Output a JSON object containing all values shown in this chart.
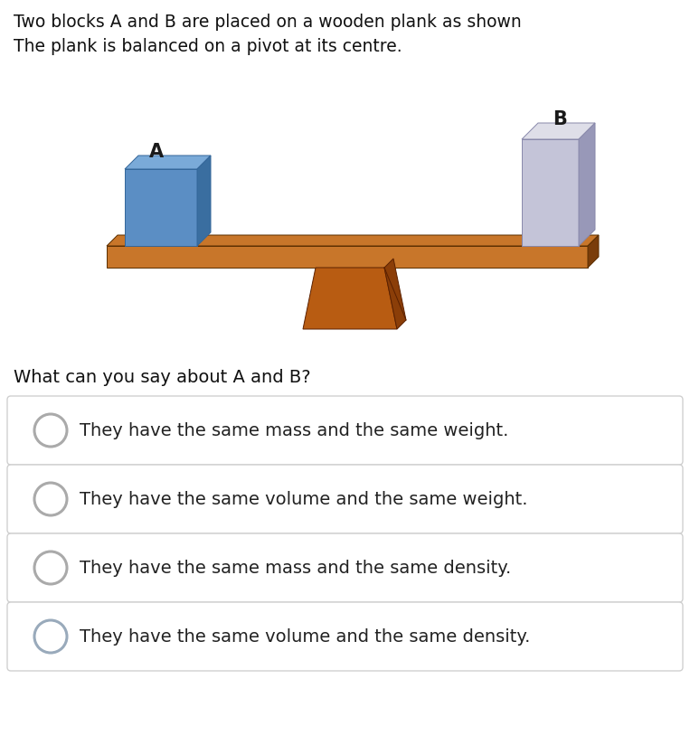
{
  "title_line1": "Two blocks A and B are placed on a wooden plank as shown",
  "title_line2": "The plank is balanced on a pivot at its centre.",
  "question": "What can you say about A and B?",
  "options": [
    "They have the same mass and the same weight.",
    "They have the same volume and the same weight.",
    "They have the same mass and the same density.",
    "They have the same volume and the same density."
  ],
  "bg_color": "#ffffff",
  "plank_top_color": "#c8762a",
  "plank_front_color": "#c8762a",
  "plank_side_color": "#7a3d0a",
  "pivot_front_color": "#b85c12",
  "pivot_side_color": "#8b3e08",
  "block_A_front": "#5b8ec4",
  "block_A_top": "#7aaad8",
  "block_A_side": "#3a6ea0",
  "block_B_front": "#c4c4d8",
  "block_B_top": "#dedee8",
  "block_B_side": "#9898b8",
  "label_color": "#1a1a1a",
  "option_box_bg": "#ffffff",
  "option_box_border": "#d0d0d0",
  "radio_border_1": "#aaaaaa",
  "radio_border_2": "#aaaaaa",
  "radio_border_3": "#aaaaaa",
  "radio_border_4": "#99aabb",
  "text_color": "#222222",
  "question_color": "#111111",
  "title_color": "#111111"
}
